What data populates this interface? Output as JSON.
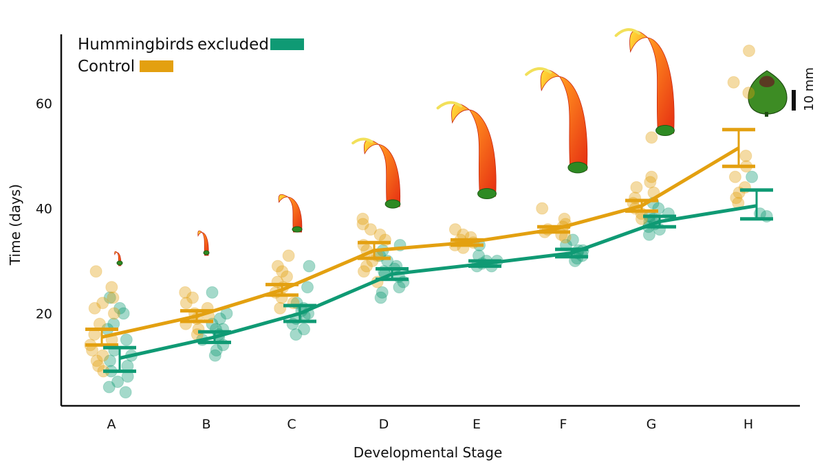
{
  "chart_data": {
    "type": "scatter",
    "title": "",
    "xlabel": "Developmental Stage",
    "ylabel": "Time (days)",
    "ylim": [
      0,
      75
    ],
    "yticks": [
      20,
      40,
      60
    ],
    "categories": [
      "A",
      "B",
      "C",
      "D",
      "E",
      "F",
      "G",
      "H"
    ],
    "grid": false,
    "legend_position": "top-left",
    "series": [
      {
        "name": "Hummingbirds excluded",
        "color": "#0f9a74",
        "means": [
          11.5,
          15.5,
          20,
          27.5,
          29.5,
          31.5,
          37.5,
          40.5
        ],
        "err_low": [
          9,
          14.5,
          18.5,
          26.5,
          29,
          30.8,
          36.5,
          38
        ],
        "err_high": [
          13.5,
          16.5,
          21.5,
          28.5,
          30,
          32.2,
          38.5,
          43.5
        ],
        "points": [
          [
            5,
            6,
            7,
            8,
            9,
            10,
            11,
            12,
            13,
            15,
            17,
            18,
            20,
            21,
            23
          ],
          [
            12,
            13,
            14,
            15,
            15.5,
            16,
            17,
            17,
            18,
            19,
            20,
            24
          ],
          [
            16,
            17,
            18,
            19,
            19.5,
            20,
            20.5,
            21,
            22,
            25,
            29
          ],
          [
            23,
            24,
            25,
            26,
            27,
            27.5,
            28,
            28.5,
            29,
            30,
            31,
            32,
            33
          ],
          [
            29,
            29,
            29.5,
            30,
            30,
            31,
            33
          ],
          [
            30,
            30.5,
            31,
            31.5,
            32,
            32,
            33,
            34
          ],
          [
            35,
            36,
            36.5,
            37,
            37.5,
            38,
            38.5,
            39,
            40,
            41
          ],
          [
            38.5,
            39,
            46
          ]
        ]
      },
      {
        "name": "Control",
        "color": "#e3a010",
        "means": [
          15.5,
          19.5,
          24.5,
          32,
          33.5,
          36,
          40.5,
          51.5
        ],
        "err_low": [
          14,
          18.5,
          23.5,
          30.5,
          33,
          35.5,
          39.5,
          48
        ],
        "err_high": [
          17,
          20.5,
          25.5,
          33.5,
          34,
          36.5,
          41.5,
          55
        ],
        "points": [
          [
            9,
            10,
            11,
            12,
            13,
            14,
            15,
            16,
            18,
            20,
            21,
            22,
            23,
            25,
            28
          ],
          [
            16,
            17,
            18,
            19,
            19.5,
            20,
            21,
            22,
            23,
            24
          ],
          [
            21,
            22,
            23,
            24,
            25,
            26,
            27,
            28,
            29,
            31
          ],
          [
            26,
            28,
            29,
            30,
            31,
            32,
            33,
            34,
            35,
            36,
            37,
            38
          ],
          [
            32.5,
            33,
            33.5,
            34,
            34.5,
            35,
            36
          ],
          [
            34.5,
            35,
            35.5,
            36,
            36.5,
            37,
            38,
            40
          ],
          [
            38,
            39,
            40,
            41,
            42,
            43,
            44,
            45,
            46,
            53.5
          ],
          [
            41,
            42,
            43,
            44,
            46,
            48,
            50,
            62,
            64,
            70
          ]
        ]
      }
    ],
    "annotations": {
      "scale_bar": "10 mm"
    }
  },
  "legend": {
    "excluded_label_1": "Hummingbirds",
    "excluded_label_2": "excluded",
    "control_label": "Control"
  }
}
